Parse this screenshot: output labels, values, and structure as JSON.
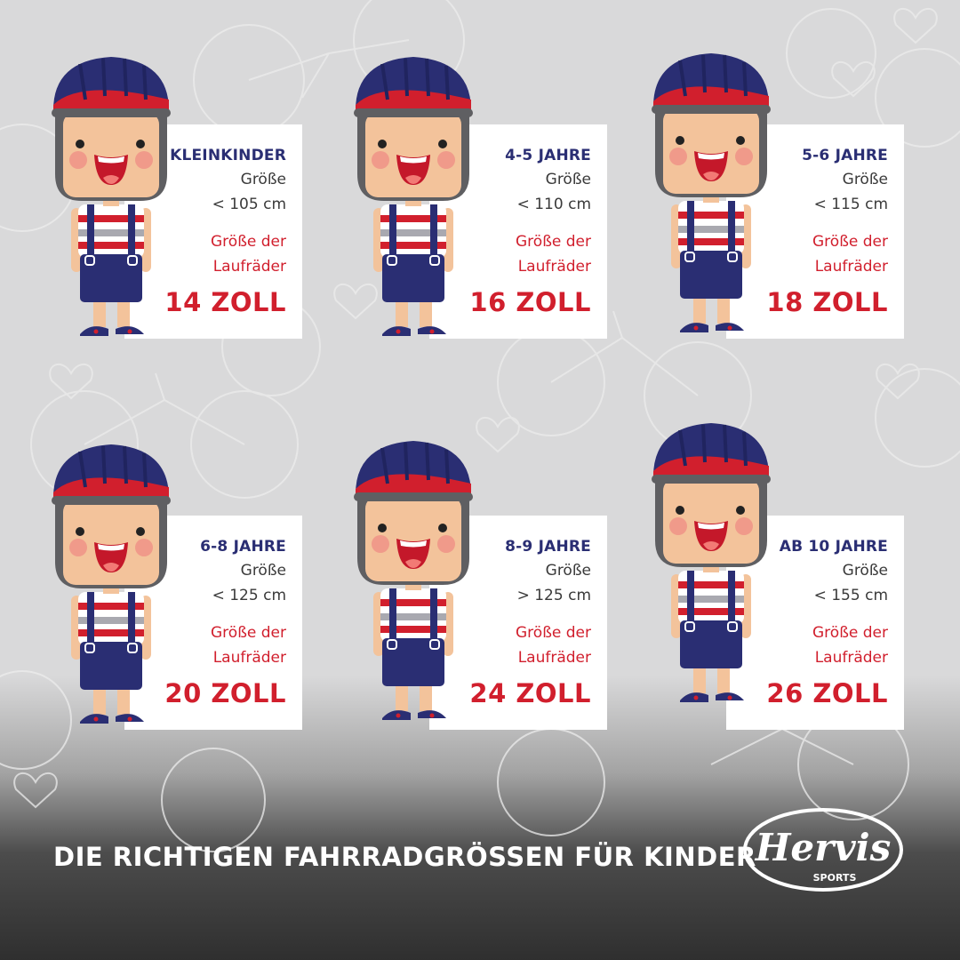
{
  "items": [
    {
      "age": "KLEINKINDER",
      "size_label": "Größe",
      "height": "< 105 cm",
      "wheel_label_1": "Größe der",
      "wheel_label_2": "Laufräder",
      "wheel_size": "14 ZOLL"
    },
    {
      "age": "4-5 JAHRE",
      "size_label": "Größe",
      "height": "< 110 cm",
      "wheel_label_1": "Größe der",
      "wheel_label_2": "Laufräder",
      "wheel_size": "16 ZOLL"
    },
    {
      "age": "5-6 JAHRE",
      "size_label": "Größe",
      "height": "< 115 cm",
      "wheel_label_1": "Größe der",
      "wheel_label_2": "Laufräder",
      "wheel_size": "18 ZOLL"
    },
    {
      "age": "6-8 JAHRE",
      "size_label": "Größe",
      "height": "< 125 cm",
      "wheel_label_1": "Größe der",
      "wheel_label_2": "Laufräder",
      "wheel_size": "20 ZOLL"
    },
    {
      "age": "8-9 JAHRE",
      "size_label": "Größe",
      "height": "> 125 cm",
      "wheel_label_1": "Größe der",
      "wheel_label_2": "Laufräder",
      "wheel_size": "24 ZOLL"
    },
    {
      "age": "AB 10 JAHRE",
      "size_label": "Größe",
      "height": "< 155 cm",
      "wheel_label_1": "Größe der",
      "wheel_label_2": "Laufräder",
      "wheel_size": "26 ZOLL"
    }
  ],
  "footer": {
    "title": "DIE RICHTIGEN FAHRRADGRÖSSEN FÜR KINDER"
  },
  "logo": {
    "name": "Hervis",
    "sub": "SPORTS"
  },
  "colors": {
    "navy": "#2a2e73",
    "red": "#d11f2d",
    "skin": "#f3c39b",
    "background": "#d9d9da"
  }
}
